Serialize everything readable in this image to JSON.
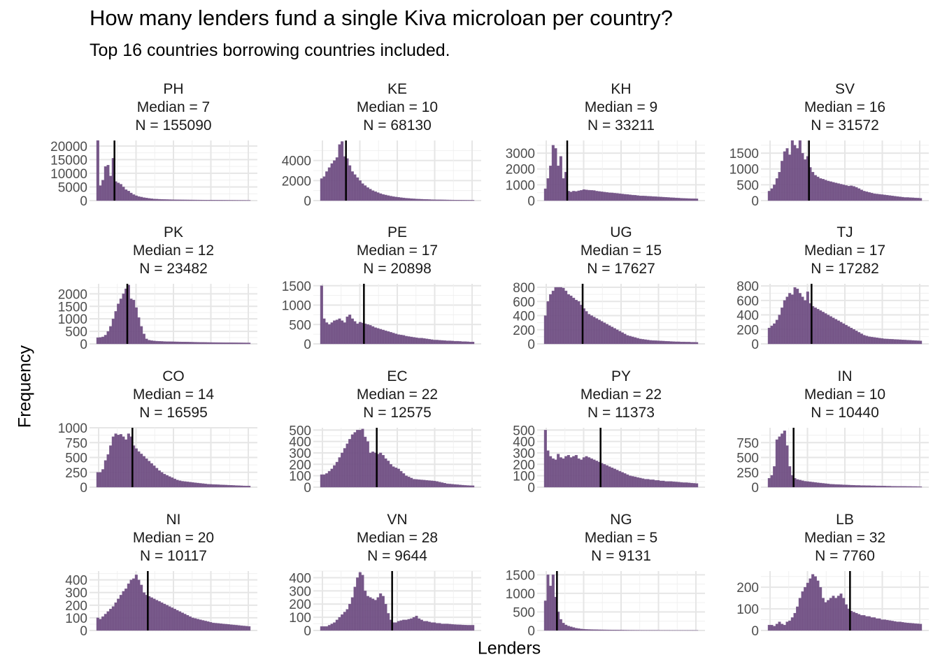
{
  "chart_data": {
    "type": "bar",
    "title": "How many lenders fund a single Kiva microloan per country?",
    "subtitle": "Top 16 countries borrowing countries included.",
    "xlabel": "Lenders",
    "ylabel": "Frequency",
    "median_label": "Median = ",
    "n_label": "N = ",
    "grid": true,
    "bar_color": "#6f4e82",
    "median_line_color": "#000000",
    "bins": 60,
    "xlim": [
      0,
      60
    ],
    "panels": [
      {
        "country": "PH",
        "median": 7,
        "n": 155090,
        "ylim": [
          0,
          22000
        ],
        "yticks": [
          0,
          5000,
          10000,
          15000,
          20000
        ],
        "values": [
          22000,
          5500,
          7500,
          12500,
          13000,
          9000,
          15500,
          7000,
          6500,
          6000,
          5000,
          4000,
          3500,
          2800,
          2200,
          1800,
          1500,
          1300,
          1100,
          950,
          800,
          700,
          600,
          550,
          500,
          450,
          420,
          400,
          380,
          360,
          340,
          320,
          300,
          290,
          280,
          270,
          260,
          250,
          240,
          230,
          220,
          210,
          200,
          190,
          180,
          175,
          170,
          165,
          160,
          155,
          150,
          145,
          140,
          135,
          130,
          125,
          120,
          115,
          110,
          105
        ]
      },
      {
        "country": "KE",
        "median": 10,
        "n": 68130,
        "ylim": [
          0,
          6000
        ],
        "yticks": [
          0,
          2000,
          4000
        ],
        "values": [
          2200,
          2400,
          2900,
          3300,
          3700,
          4000,
          4300,
          5600,
          5900,
          4400,
          4200,
          3500,
          2900,
          2600,
          2300,
          2000,
          1700,
          1500,
          1300,
          1150,
          1000,
          900,
          800,
          700,
          620,
          560,
          500,
          450,
          400,
          360,
          330,
          300,
          270,
          240,
          220,
          200,
          180,
          165,
          150,
          140,
          130,
          120,
          110,
          100,
          95,
          90,
          85,
          80,
          75,
          70,
          65,
          60,
          55,
          50,
          48,
          46,
          44,
          42,
          40,
          38
        ]
      },
      {
        "country": "KH",
        "median": 9,
        "n": 33211,
        "ylim": [
          0,
          3800
        ],
        "yticks": [
          0,
          1000,
          2000,
          3000
        ],
        "values": [
          750,
          1400,
          2200,
          3500,
          3300,
          2200,
          2800,
          1400,
          1800,
          600,
          550,
          600,
          580,
          620,
          650,
          700,
          680,
          660,
          650,
          640,
          600,
          580,
          560,
          540,
          520,
          500,
          490,
          470,
          460,
          440,
          420,
          400,
          390,
          370,
          350,
          340,
          320,
          300,
          300,
          290,
          280,
          270,
          260,
          250,
          240,
          230,
          220,
          210,
          200,
          190,
          180,
          170,
          160,
          150,
          140,
          135,
          130,
          125,
          120,
          115
        ]
      },
      {
        "country": "SV",
        "median": 16,
        "n": 31572,
        "ylim": [
          0,
          1900
        ],
        "yticks": [
          0,
          500,
          1000,
          1500
        ],
        "values": [
          300,
          380,
          500,
          700,
          900,
          1250,
          1550,
          1650,
          1450,
          1900,
          1750,
          1650,
          1900,
          1500,
          1300,
          1400,
          1050,
          900,
          800,
          750,
          700,
          680,
          650,
          620,
          600,
          580,
          560,
          540,
          520,
          500,
          480,
          460,
          470,
          450,
          420,
          380,
          340,
          300,
          280,
          260,
          240,
          220,
          210,
          200,
          190,
          180,
          170,
          160,
          150,
          140,
          130,
          120,
          110,
          100,
          100,
          95,
          90,
          85,
          80,
          75
        ]
      },
      {
        "country": "PK",
        "median": 12,
        "n": 23482,
        "ylim": [
          0,
          2400
        ],
        "yticks": [
          0,
          500,
          1000,
          1500,
          2000
        ],
        "values": [
          250,
          260,
          280,
          350,
          500,
          700,
          1000,
          1300,
          1600,
          1800,
          2000,
          2200,
          2350,
          1800,
          1750,
          1450,
          1050,
          700,
          400,
          200,
          150,
          130,
          120,
          110,
          105,
          100,
          95,
          92,
          90,
          88,
          85,
          83,
          80,
          78,
          76,
          74,
          72,
          70,
          68,
          66,
          64,
          62,
          60,
          58,
          56,
          55,
          54,
          53,
          52,
          51,
          50,
          49,
          48,
          47,
          46,
          45,
          44,
          43,
          42,
          41
        ]
      },
      {
        "country": "PE",
        "median": 17,
        "n": 20898,
        "ylim": [
          0,
          1550
        ],
        "yticks": [
          0,
          500,
          1000,
          1500
        ],
        "values": [
          1500,
          650,
          550,
          500,
          550,
          600,
          620,
          650,
          600,
          550,
          700,
          750,
          650,
          580,
          520,
          560,
          540,
          520,
          500,
          480,
          450,
          420,
          400,
          380,
          360,
          340,
          320,
          300,
          280,
          260,
          240,
          230,
          220,
          200,
          190,
          180,
          170,
          160,
          150,
          150,
          140,
          130,
          120,
          110,
          100,
          100,
          95,
          90,
          85,
          80,
          80,
          75,
          70,
          70,
          65,
          60,
          60,
          55,
          50,
          50
        ]
      },
      {
        "country": "UG",
        "median": 15,
        "n": 17627,
        "ylim": [
          0,
          850
        ],
        "yticks": [
          0,
          200,
          400,
          600,
          800
        ],
        "values": [
          400,
          600,
          700,
          750,
          800,
          800,
          800,
          790,
          750,
          700,
          680,
          650,
          620,
          600,
          550,
          500,
          460,
          420,
          400,
          380,
          360,
          340,
          320,
          300,
          280,
          260,
          240,
          220,
          200,
          180,
          160,
          140,
          120,
          110,
          100,
          90,
          80,
          70,
          65,
          60,
          55,
          50,
          48,
          46,
          44,
          42,
          40,
          38,
          36,
          34,
          32,
          30,
          30,
          28,
          28,
          26,
          26,
          24,
          24,
          22
        ]
      },
      {
        "country": "TJ",
        "median": 17,
        "n": 17282,
        "ylim": [
          0,
          830
        ],
        "yticks": [
          0,
          200,
          400,
          600,
          800
        ],
        "values": [
          220,
          250,
          280,
          330,
          400,
          500,
          600,
          650,
          700,
          680,
          780,
          760,
          700,
          650,
          600,
          720,
          560,
          520,
          500,
          480,
          460,
          440,
          420,
          400,
          380,
          360,
          340,
          320,
          300,
          280,
          260,
          240,
          220,
          200,
          180,
          160,
          140,
          120,
          110,
          100,
          95,
          90,
          85,
          80,
          75,
          70,
          68,
          66,
          64,
          62,
          60,
          58,
          56,
          54,
          52,
          50,
          48,
          46,
          44,
          42
        ]
      },
      {
        "country": "CO",
        "median": 14,
        "n": 16595,
        "ylim": [
          0,
          1000
        ],
        "yticks": [
          0,
          250,
          500,
          750,
          1000
        ],
        "values": [
          250,
          250,
          300,
          450,
          550,
          700,
          850,
          900,
          880,
          890,
          850,
          800,
          900,
          850,
          700,
          650,
          600,
          560,
          520,
          480,
          440,
          400,
          360,
          320,
          280,
          250,
          220,
          200,
          180,
          160,
          140,
          120,
          110,
          100,
          95,
          90,
          85,
          80,
          75,
          70,
          65,
          60,
          55,
          50,
          48,
          46,
          44,
          42,
          40,
          38,
          36,
          34,
          32,
          30,
          28,
          26,
          24,
          22,
          20,
          20
        ]
      },
      {
        "country": "EC",
        "median": 22,
        "n": 12575,
        "ylim": [
          0,
          520
        ],
        "yticks": [
          0,
          100,
          200,
          300,
          400,
          500
        ],
        "values": [
          110,
          110,
          120,
          140,
          160,
          190,
          220,
          260,
          300,
          340,
          380,
          420,
          460,
          480,
          500,
          500,
          510,
          440,
          400,
          300,
          310,
          300,
          290,
          300,
          280,
          250,
          230,
          200,
          180,
          170,
          160,
          140,
          120,
          100,
          90,
          80,
          70,
          68,
          66,
          64,
          62,
          60,
          58,
          56,
          54,
          50,
          45,
          40,
          35,
          30,
          28,
          26,
          24,
          22,
          20,
          18,
          16,
          15,
          14,
          13
        ]
      },
      {
        "country": "PY",
        "median": 22,
        "n": 11373,
        "ylim": [
          0,
          520
        ],
        "yticks": [
          0,
          100,
          200,
          300,
          400,
          500
        ],
        "values": [
          500,
          320,
          270,
          250,
          240,
          290,
          260,
          250,
          270,
          280,
          260,
          270,
          280,
          250,
          240,
          260,
          270,
          260,
          250,
          240,
          230,
          220,
          210,
          200,
          190,
          180,
          170,
          160,
          150,
          140,
          130,
          120,
          110,
          100,
          95,
          90,
          85,
          80,
          75,
          70,
          70,
          65,
          65,
          60,
          60,
          55,
          55,
          50,
          50,
          50,
          48,
          46,
          44,
          42,
          40,
          40,
          38,
          36,
          34,
          32
        ]
      },
      {
        "country": "IN",
        "median": 10,
        "n": 10440,
        "ylim": [
          0,
          1000
        ],
        "yticks": [
          0,
          250,
          500,
          750
        ],
        "values": [
          150,
          200,
          350,
          800,
          850,
          900,
          950,
          700,
          350,
          200,
          150,
          130,
          120,
          110,
          100,
          95,
          90,
          85,
          80,
          75,
          70,
          65,
          60,
          55,
          50,
          48,
          46,
          44,
          42,
          40,
          38,
          36,
          34,
          32,
          30,
          30,
          28,
          28,
          26,
          26,
          24,
          24,
          22,
          22,
          20,
          20,
          18,
          18,
          16,
          16,
          15,
          15,
          14,
          14,
          13,
          13,
          12,
          12,
          11,
          10
        ]
      },
      {
        "country": "NI",
        "median": 20,
        "n": 10117,
        "ylim": [
          0,
          470
        ],
        "yticks": [
          0,
          100,
          200,
          300,
          400
        ],
        "values": [
          100,
          90,
          110,
          130,
          150,
          170,
          190,
          220,
          250,
          280,
          310,
          330,
          370,
          400,
          410,
          440,
          400,
          360,
          300,
          280,
          270,
          260,
          250,
          240,
          230,
          220,
          210,
          200,
          190,
          180,
          170,
          160,
          150,
          140,
          130,
          120,
          110,
          100,
          95,
          90,
          85,
          80,
          75,
          70,
          65,
          60,
          58,
          56,
          54,
          52,
          50,
          48,
          46,
          44,
          42,
          40,
          38,
          36,
          34,
          32
        ]
      },
      {
        "country": "VN",
        "median": 28,
        "n": 9644,
        "ylim": [
          0,
          450
        ],
        "yticks": [
          0,
          100,
          200,
          300,
          400
        ],
        "values": [
          30,
          30,
          30,
          40,
          50,
          60,
          80,
          100,
          120,
          140,
          160,
          200,
          250,
          330,
          400,
          440,
          420,
          300,
          260,
          250,
          240,
          230,
          250,
          280,
          260,
          200,
          130,
          80,
          60,
          60,
          70,
          75,
          80,
          80,
          85,
          90,
          100,
          110,
          90,
          80,
          70,
          70,
          65,
          60,
          60,
          55,
          55,
          50,
          50,
          50,
          48,
          46,
          45,
          44,
          43,
          42,
          41,
          40,
          40,
          40
        ]
      },
      {
        "country": "NG",
        "median": 5,
        "n": 9131,
        "ylim": [
          0,
          1600
        ],
        "yticks": [
          0,
          500,
          1000,
          1500
        ],
        "values": [
          800,
          1500,
          1200,
          1500,
          900,
          500,
          300,
          200,
          150,
          120,
          100,
          80,
          60,
          50,
          40,
          35,
          30,
          28,
          26,
          24,
          22,
          20,
          19,
          18,
          17,
          16,
          15,
          14,
          13,
          12,
          11,
          10,
          9,
          8,
          8,
          7,
          7,
          6,
          6,
          5,
          5,
          5,
          4,
          4,
          4,
          3,
          3,
          3,
          3,
          2,
          2,
          2,
          2,
          2,
          2,
          2,
          2,
          2,
          2,
          2
        ]
      },
      {
        "country": "LB",
        "median": 32,
        "n": 7760,
        "ylim": [
          0,
          275
        ],
        "yticks": [
          0,
          100,
          200
        ],
        "values": [
          25,
          25,
          20,
          30,
          40,
          30,
          25,
          40,
          45,
          60,
          80,
          110,
          150,
          180,
          200,
          220,
          240,
          260,
          250,
          230,
          200,
          150,
          130,
          140,
          150,
          160,
          150,
          160,
          170,
          150,
          120,
          100,
          90,
          85,
          80,
          75,
          70,
          70,
          65,
          65,
          60,
          60,
          55,
          55,
          50,
          50,
          48,
          46,
          44,
          42,
          40,
          40,
          38,
          36,
          35,
          34,
          33,
          32,
          31,
          30
        ]
      }
    ]
  }
}
